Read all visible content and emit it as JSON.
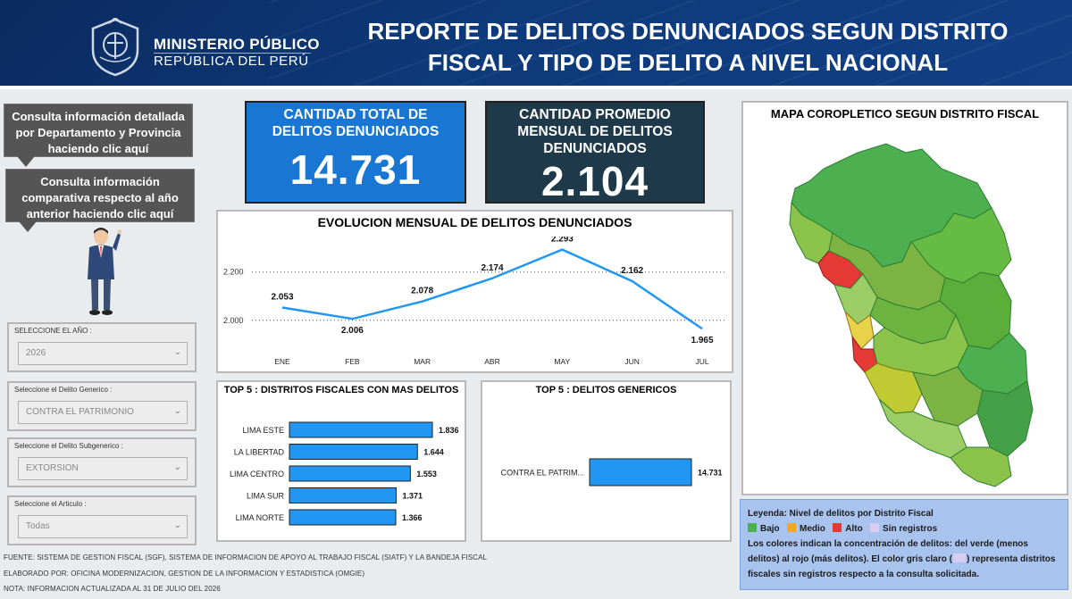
{
  "header": {
    "org_name": "MINISTERIO PÚBLICO",
    "org_sub": "REPÚBLICA DEL PERÚ",
    "title_line1": "REPORTE DE DELITOS DENUNCIADOS SEGUN DISTRITO",
    "title_line2": "FISCAL Y TIPO DE DELITO A NIVEL NACIONAL"
  },
  "nav": {
    "btn_detail": "Consulta información detallada por Departamento y Provincia haciendo clic aquí",
    "btn_compare": "Consulta información comparativa respecto al año anterior haciendo clic aquí"
  },
  "filters": [
    {
      "label": "SELECCIONE EL AÑO :",
      "value": "2026"
    },
    {
      "label": "Seleccione el Delito Generico :",
      "value": "CONTRA EL PATRIMONIO"
    },
    {
      "label": "Seleccione el Delito Subgenerico :",
      "value": "EXTORSION"
    },
    {
      "label": "Seleccione el Articulo :",
      "value": "Todas"
    }
  ],
  "kpis": {
    "total_title": "CANTIDAD TOTAL DE DELITOS DENUNCIADOS",
    "total_value": "14.731",
    "avg_title": "CANTIDAD PROMEDIO MENSUAL DE DELITOS DENUNCIADOS",
    "avg_value": "2.104"
  },
  "colors": {
    "header_bg": "#0d3a7a",
    "kpi_total_bg": "#1976d2",
    "kpi_avg_bg": "#1e3a4a",
    "bar": "#2196f3",
    "line": "#2196f3",
    "map_green": "#5cb85c",
    "map_red": "#e74c3c",
    "map_yellow": "#e8d24a",
    "legend_bg": "#a8c4ee"
  },
  "chart_data": [
    {
      "type": "line",
      "title": "EVOLUCION MENSUAL DE DELITOS DENUNCIADOS",
      "categories": [
        "ENE",
        "FEB",
        "MAR",
        "ABR",
        "MAY",
        "JUN",
        "JUL"
      ],
      "values": [
        2053,
        2006,
        2078,
        2174,
        2293,
        2162,
        1965
      ],
      "value_labels": [
        "2.053",
        "2.006",
        "2.078",
        "2.174",
        "2.293",
        "2.162",
        "1.965"
      ],
      "yticks": [
        2000,
        2200
      ],
      "ytick_labels": [
        "2.000",
        "2.200"
      ],
      "grid": true
    },
    {
      "type": "bar",
      "orientation": "horizontal",
      "title": "TOP 5 : DISTRITOS FISCALES CON MAS DELITOS",
      "categories": [
        "LIMA ESTE",
        "LA LIBERTAD",
        "LIMA CENTRO",
        "LIMA SUR",
        "LIMA NORTE"
      ],
      "values": [
        1836,
        1644,
        1553,
        1371,
        1366
      ],
      "value_labels": [
        "1.836",
        "1.644",
        "1.553",
        "1.371",
        "1.366"
      ]
    },
    {
      "type": "bar",
      "orientation": "horizontal",
      "title": "TOP 5 : DELITOS GENERICOS",
      "categories": [
        "CONTRA EL PATRIM..."
      ],
      "values": [
        14731
      ],
      "value_labels": [
        "14.731"
      ]
    }
  ],
  "map": {
    "title": "MAPA COROPLETICO SEGUN DISTRITO FISCAL"
  },
  "legend": {
    "title": "Leyenda: Nivel de delitos por Distrito Fiscal",
    "items": [
      {
        "label": "Bajo",
        "color": "#4caf50"
      },
      {
        "label": "Medio",
        "color": "#f5a623"
      },
      {
        "label": "Alto",
        "color": "#e53935"
      },
      {
        "label": "Sin registros",
        "color": "#d8ccf0"
      }
    ],
    "text_a": "Los colores indican la concentración de delitos: del verde (menos delitos) al rojo (más delitos). El color gris claro (",
    "text_b": ") representa distritos fiscales sin registros respecto a la consulta solicitada."
  },
  "footer": {
    "source": "FUENTE: SISTEMA DE GESTION FISCAL (SGF), SISTEMA DE INFORMACION DE APOYO AL TRABAJO FISCAL (SIATF) Y LA BANDEJA FISCAL",
    "elaborated": "ELABORADO POR: OFICINA MODERNIZACION, GESTION DE LA INFORMACION Y ESTADISTICA (OMGIE)",
    "note": "NOTA: INFORMACION ACTUALIZADA AL 31 DE JULIO DEL 2026"
  }
}
